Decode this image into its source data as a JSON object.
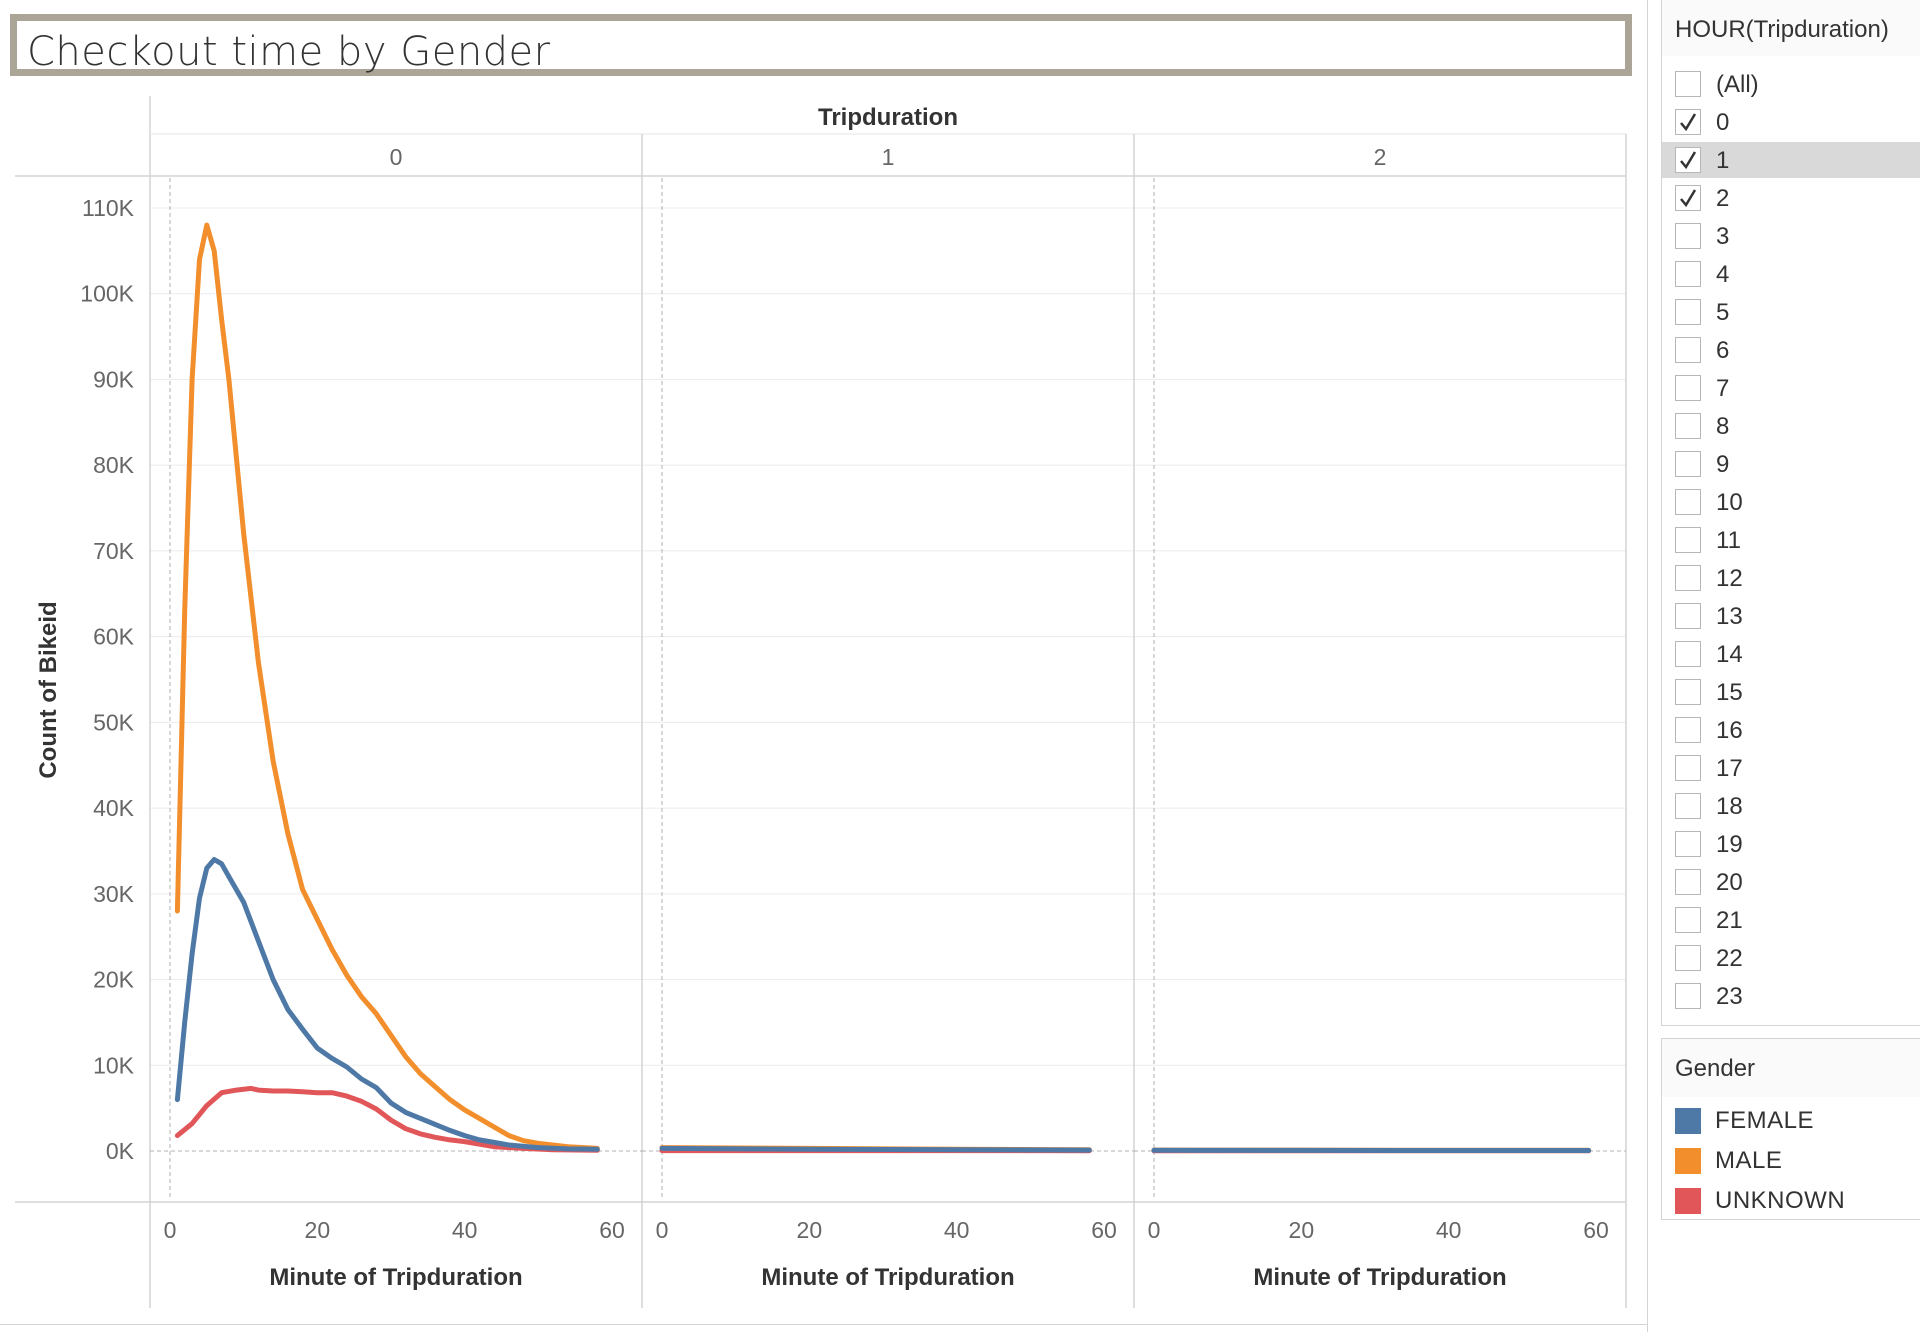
{
  "title": "Checkout time by Gender",
  "filter": {
    "title": "HOUR(Tripduration)",
    "items": [
      {
        "label": "(All)",
        "checked": false
      },
      {
        "label": "0",
        "checked": true
      },
      {
        "label": "1",
        "checked": true,
        "highlighted": true
      },
      {
        "label": "2",
        "checked": true
      },
      {
        "label": "3",
        "checked": false
      },
      {
        "label": "4",
        "checked": false
      },
      {
        "label": "5",
        "checked": false
      },
      {
        "label": "6",
        "checked": false
      },
      {
        "label": "7",
        "checked": false
      },
      {
        "label": "8",
        "checked": false
      },
      {
        "label": "9",
        "checked": false
      },
      {
        "label": "10",
        "checked": false
      },
      {
        "label": "11",
        "checked": false
      },
      {
        "label": "12",
        "checked": false
      },
      {
        "label": "13",
        "checked": false
      },
      {
        "label": "14",
        "checked": false
      },
      {
        "label": "15",
        "checked": false
      },
      {
        "label": "16",
        "checked": false
      },
      {
        "label": "17",
        "checked": false
      },
      {
        "label": "18",
        "checked": false
      },
      {
        "label": "19",
        "checked": false
      },
      {
        "label": "20",
        "checked": false
      },
      {
        "label": "21",
        "checked": false
      },
      {
        "label": "22",
        "checked": false
      },
      {
        "label": "23",
        "checked": false
      }
    ]
  },
  "legend": {
    "title": "Gender",
    "items": [
      {
        "label": "FEMALE",
        "color": "#4e79a7"
      },
      {
        "label": "MALE",
        "color": "#f28e2b"
      },
      {
        "label": "UNKNOWN",
        "color": "#e15759"
      }
    ]
  },
  "chart_data": {
    "type": "line",
    "column_header": "Tripduration",
    "panels": [
      "0",
      "1",
      "2"
    ],
    "xlabel": "Minute of Tripduration",
    "ylabel": "Count of Bikeid",
    "xlim": [
      0,
      60
    ],
    "x_ticks": [
      "0",
      "20",
      "40",
      "60"
    ],
    "ylim": [
      0,
      110000
    ],
    "y_ticks": [
      "0K",
      "10K",
      "20K",
      "30K",
      "40K",
      "50K",
      "60K",
      "70K",
      "80K",
      "90K",
      "100K",
      "110K"
    ],
    "series": [
      {
        "name": "MALE",
        "color": "#f28e2b",
        "panels": [
          {
            "x": [
              1,
              2,
              3,
              4,
              5,
              6,
              7,
              8,
              10,
              12,
              14,
              16,
              18,
              20,
              22,
              24,
              26,
              28,
              30,
              32,
              34,
              36,
              38,
              40,
              42,
              44,
              46,
              48,
              50,
              54,
              58
            ],
            "y": [
              28000,
              63000,
              90000,
              104000,
              108000,
              105000,
              97000,
              90000,
              72000,
              57000,
              45500,
              37000,
              30500,
              27000,
              23500,
              20500,
              18000,
              16000,
              13500,
              11000,
              9000,
              7500,
              6000,
              4800,
              3800,
              2800,
              1800,
              1200,
              900,
              500,
              300
            ]
          },
          {
            "x": [
              0,
              20,
              40,
              58
            ],
            "y": [
              400,
              300,
              200,
              150
            ]
          },
          {
            "x": [
              0,
              20,
              40,
              59
            ],
            "y": [
              100,
              100,
              80,
              80
            ]
          }
        ]
      },
      {
        "name": "FEMALE",
        "color": "#4e79a7",
        "panels": [
          {
            "x": [
              1,
              2,
              3,
              4,
              5,
              6,
              7,
              8,
              9,
              10,
              12,
              14,
              16,
              18,
              20,
              22,
              24,
              26,
              28,
              30,
              32,
              34,
              36,
              38,
              40,
              42,
              44,
              46,
              50,
              54,
              58
            ],
            "y": [
              6000,
              15000,
              23000,
              29500,
              33000,
              34000,
              33500,
              32000,
              30500,
              29000,
              24500,
              20000,
              16500,
              14200,
              12000,
              10800,
              9800,
              8400,
              7400,
              5600,
              4500,
              3800,
              3100,
              2400,
              1800,
              1300,
              1000,
              700,
              400,
              250,
              200
            ]
          },
          {
            "x": [
              0,
              20,
              40,
              58
            ],
            "y": [
              300,
              200,
              150,
              100
            ]
          },
          {
            "x": [
              0,
              20,
              40,
              59
            ],
            "y": [
              80,
              70,
              60,
              60
            ]
          }
        ]
      },
      {
        "name": "UNKNOWN",
        "color": "#e15759",
        "panels": [
          {
            "x": [
              1,
              3,
              5,
              7,
              9,
              11,
              12,
              14,
              16,
              18,
              20,
              22,
              24,
              26,
              28,
              30,
              32,
              34,
              36,
              38,
              40,
              42,
              44,
              48,
              52,
              58
            ],
            "y": [
              1800,
              3200,
              5300,
              6800,
              7100,
              7300,
              7100,
              7000,
              7000,
              6900,
              6800,
              6800,
              6400,
              5800,
              4900,
              3600,
              2600,
              2000,
              1600,
              1300,
              1100,
              800,
              500,
              300,
              150,
              80
            ]
          },
          {
            "x": [
              0,
              58
            ],
            "y": [
              50,
              30
            ]
          },
          {
            "x": [
              0,
              59
            ],
            "y": [
              20,
              20
            ]
          }
        ]
      }
    ]
  }
}
